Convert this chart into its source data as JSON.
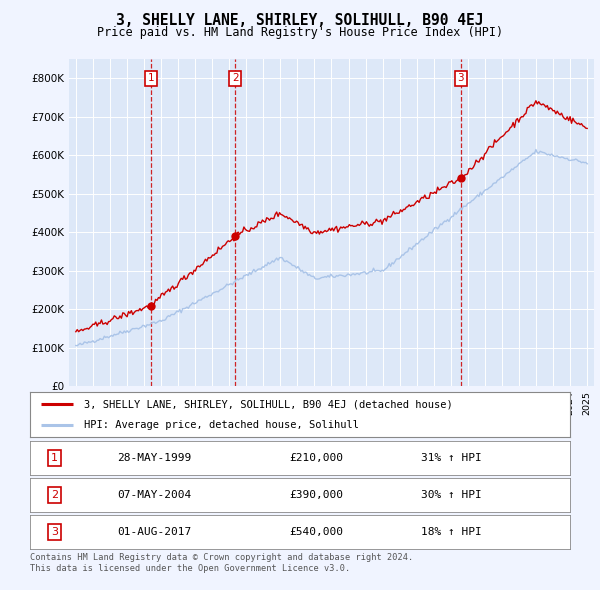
{
  "title": "3, SHELLY LANE, SHIRLEY, SOLIHULL, B90 4EJ",
  "subtitle": "Price paid vs. HM Land Registry's House Price Index (HPI)",
  "background_color": "#f0f4ff",
  "plot_bg_color": "#dde8f8",
  "grid_color": "#ffffff",
  "sale_prices": [
    210000,
    390000,
    540000
  ],
  "sale_labels": [
    "1",
    "2",
    "3"
  ],
  "sale_pct": [
    "31% ↑ HPI",
    "30% ↑ HPI",
    "18% ↑ HPI"
  ],
  "sale_date_labels": [
    "28-MAY-1999",
    "07-MAY-2004",
    "01-AUG-2017"
  ],
  "sale_price_labels": [
    "£210,000",
    "£390,000",
    "£540,000"
  ],
  "hpi_line_color": "#aac4e8",
  "price_line_color": "#cc0000",
  "dashed_line_color": "#cc0000",
  "ylim": [
    0,
    850000
  ],
  "ytick_vals": [
    0,
    100000,
    200000,
    300000,
    400000,
    500000,
    600000,
    700000,
    800000
  ],
  "ytick_labels": [
    "£0",
    "£100K",
    "£200K",
    "£300K",
    "£400K",
    "£500K",
    "£600K",
    "£700K",
    "£800K"
  ],
  "footer_text": "Contains HM Land Registry data © Crown copyright and database right 2024.\nThis data is licensed under the Open Government Licence v3.0.",
  "legend_label_red": "3, SHELLY LANE, SHIRLEY, SOLIHULL, B90 4EJ (detached house)",
  "legend_label_blue": "HPI: Average price, detached house, Solihull",
  "sale_year_nums": [
    1999.41,
    2004.35,
    2017.58
  ]
}
